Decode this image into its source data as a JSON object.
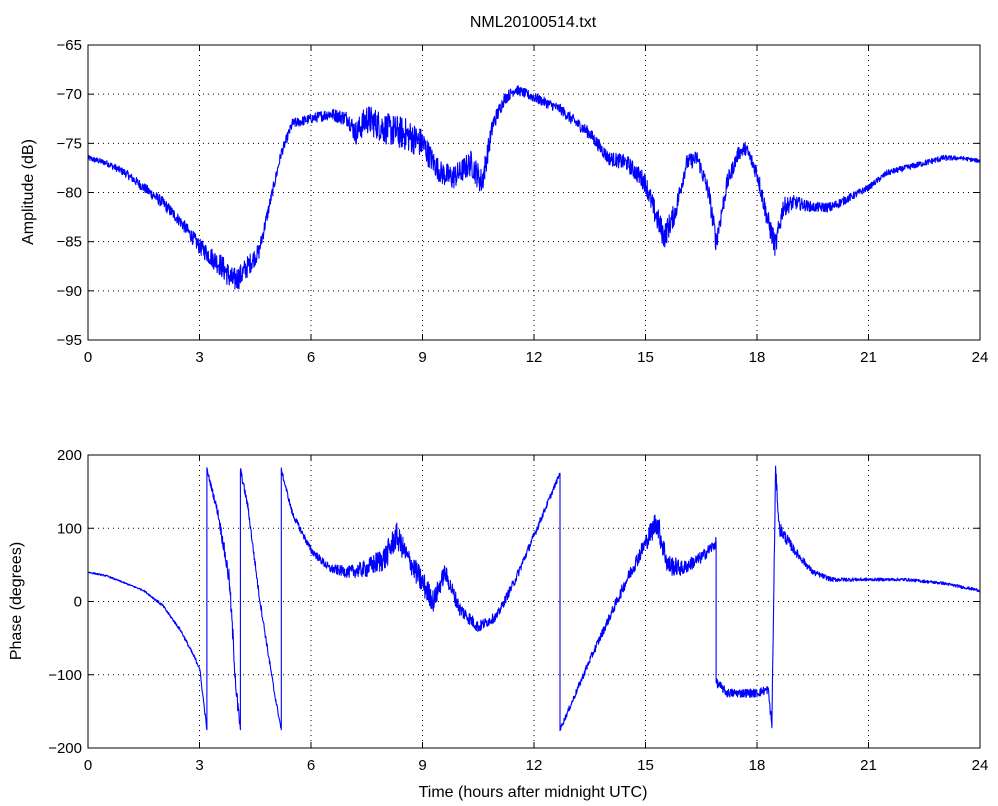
{
  "chart_data": [
    {
      "type": "line",
      "title": "NML20100514.txt",
      "xlabel": "",
      "ylabel": "Amplitude (dB)",
      "xlim": [
        0,
        24
      ],
      "ylim": [
        -95,
        -65
      ],
      "xticks": [
        0,
        3,
        6,
        9,
        12,
        15,
        18,
        21,
        24
      ],
      "yticks": [
        -95,
        -90,
        -85,
        -80,
        -75,
        -70,
        -65
      ],
      "grid": true,
      "color": "#0000ff",
      "series": [
        {
          "x": [
            0,
            0.5,
            1,
            1.5,
            2,
            2.5,
            3,
            3.3,
            3.6,
            3.9,
            4.1,
            4.3,
            4.6,
            4.9,
            5.2,
            5.5,
            6,
            6.5,
            7,
            7.2,
            7.5,
            8,
            8.5,
            9,
            9.3,
            9.5,
            9.8,
            10,
            10.3,
            10.6,
            10.9,
            11.2,
            11.5,
            11.8,
            12.1,
            12.4,
            12.7,
            13,
            13.5,
            14,
            14.5,
            15,
            15.2,
            15.5,
            15.8,
            16.1,
            16.4,
            16.7,
            16.9,
            17.2,
            17.5,
            17.7,
            18,
            18.3,
            18.5,
            18.7,
            19,
            19.5,
            20,
            20.5,
            21,
            21.5,
            22,
            22.5,
            23,
            23.5,
            24
          ],
          "y": [
            -76.5,
            -77,
            -78,
            -79.5,
            -81,
            -83,
            -85.5,
            -86.5,
            -87.5,
            -89,
            -88.5,
            -87.5,
            -86,
            -81,
            -76,
            -73,
            -72.5,
            -72,
            -72.5,
            -74,
            -72.5,
            -73.5,
            -74,
            -75,
            -77,
            -78,
            -78.5,
            -78,
            -77,
            -79,
            -73,
            -70.5,
            -69.5,
            -70,
            -70.5,
            -71,
            -71.5,
            -72.5,
            -74,
            -76.5,
            -77,
            -79,
            -81.5,
            -84.5,
            -82,
            -77,
            -76.5,
            -80,
            -85,
            -79,
            -76,
            -75.5,
            -78,
            -83,
            -85.5,
            -81.5,
            -81,
            -81.5,
            -81.5,
            -80.5,
            -79.5,
            -78,
            -77.5,
            -77,
            -76.5,
            -76.5,
            -76.8
          ],
          "noise": [
            0.3,
            0.3,
            0.4,
            0.5,
            0.6,
            0.6,
            0.8,
            1.0,
            1.2,
            1.3,
            1.2,
            1.1,
            0.8,
            0.6,
            0.5,
            0.5,
            0.5,
            0.6,
            0.8,
            1.2,
            1.5,
            1.6,
            1.7,
            1.5,
            1.2,
            1.2,
            1.3,
            1.2,
            1.3,
            1.4,
            0.9,
            0.6,
            0.5,
            0.5,
            0.5,
            0.5,
            0.5,
            0.6,
            0.6,
            0.7,
            0.8,
            1.0,
            1.2,
            1.3,
            1.1,
            0.8,
            0.8,
            1.0,
            1.1,
            0.9,
            0.7,
            0.7,
            0.9,
            1.1,
            1.2,
            1.0,
            0.7,
            0.5,
            0.5,
            0.4,
            0.3,
            0.3,
            0.3,
            0.3,
            0.3,
            0.2,
            0.2
          ]
        }
      ]
    },
    {
      "type": "line",
      "title": "",
      "xlabel": "Time (hours after midnight UTC)",
      "ylabel": "Phase (degrees)",
      "xlim": [
        0,
        24
      ],
      "ylim": [
        -200,
        200
      ],
      "xticks": [
        0,
        3,
        6,
        9,
        12,
        15,
        18,
        21,
        24
      ],
      "yticks": [
        -200,
        -100,
        0,
        100,
        200
      ],
      "grid": true,
      "color": "#0000ff",
      "series": [
        {
          "x": [
            0,
            0.5,
            1,
            1.5,
            2,
            2.5,
            3,
            3.2,
            3.2,
            3.5,
            3.8,
            4.0,
            4.1,
            4.1,
            4.3,
            4.6,
            5.0,
            5.2,
            5.2,
            5.5,
            6,
            6.5,
            7,
            7.5,
            8,
            8.3,
            8.6,
            9,
            9.3,
            9.6,
            10,
            10.5,
            11,
            11.5,
            12,
            12.7,
            12.7,
            13,
            13.5,
            14,
            14.5,
            15,
            15.3,
            15.6,
            16,
            16.5,
            16.9,
            16.9,
            17.2,
            17.6,
            18,
            18.3,
            18.4,
            18.5,
            18.6,
            19,
            19.5,
            20,
            21,
            22,
            23,
            24
          ],
          "y": [
            40,
            35,
            25,
            15,
            -5,
            -40,
            -90,
            -175,
            180,
            120,
            30,
            -130,
            -175,
            180,
            130,
            10,
            -120,
            -175,
            180,
            120,
            70,
            45,
            40,
            45,
            60,
            90,
            60,
            25,
            0,
            40,
            -10,
            -35,
            -20,
            30,
            90,
            175,
            -175,
            -140,
            -80,
            -25,
            30,
            80,
            110,
            50,
            45,
            60,
            80,
            -110,
            -125,
            -125,
            -125,
            -120,
            -170,
            180,
            100,
            70,
            40,
            30,
            30,
            30,
            25,
            15
          ],
          "noise": [
            1,
            1,
            1,
            1,
            2,
            2,
            3,
            3,
            3,
            6,
            12,
            15,
            5,
            5,
            5,
            5,
            4,
            3,
            3,
            4,
            5,
            6,
            8,
            12,
            18,
            18,
            14,
            18,
            15,
            12,
            10,
            8,
            6,
            6,
            5,
            3,
            3,
            4,
            5,
            6,
            8,
            12,
            18,
            15,
            10,
            8,
            8,
            6,
            6,
            6,
            6,
            6,
            8,
            8,
            10,
            6,
            4,
            3,
            2,
            2,
            2,
            2
          ]
        }
      ]
    }
  ]
}
